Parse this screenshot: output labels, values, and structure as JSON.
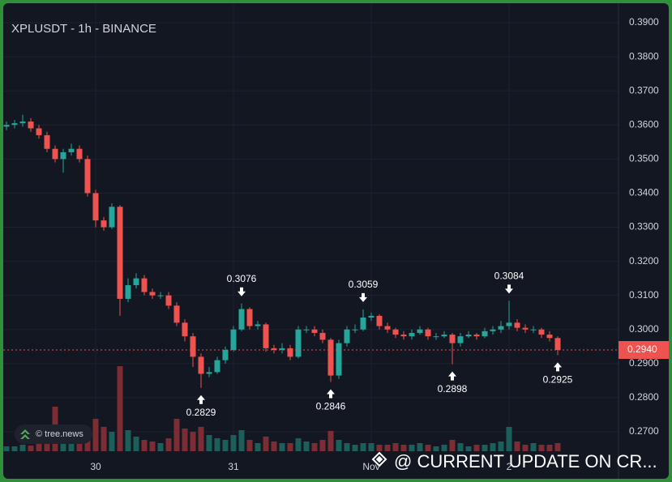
{
  "chart_data": {
    "type": "candlestick",
    "title": "XPLUSDT - 1h - BINANCE",
    "logo": "© tree.news",
    "watermark": "@ CURRENT UPDATE ON CR...",
    "categories": [
      null,
      null,
      null,
      null,
      null,
      null,
      null,
      null,
      null,
      null,
      null,
      "30",
      null,
      null,
      null,
      null,
      null,
      null,
      null,
      null,
      null,
      null,
      null,
      null,
      null,
      null,
      null,
      null,
      "31",
      null,
      null,
      null,
      null,
      null,
      null,
      null,
      null,
      null,
      null,
      null,
      null,
      null,
      null,
      null,
      null,
      "Nov",
      null,
      null,
      null,
      null,
      null,
      null,
      null,
      null,
      null,
      null,
      null,
      null,
      null,
      null,
      null,
      null,
      "2",
      null,
      null,
      null,
      null,
      null,
      null
    ],
    "open": [
      0.3595,
      0.36,
      0.3605,
      0.361,
      0.359,
      0.357,
      0.353,
      0.35,
      0.352,
      0.353,
      0.35,
      0.34,
      0.332,
      0.33,
      0.336,
      0.309,
      0.313,
      0.315,
      0.311,
      0.31,
      0.31,
      0.307,
      0.302,
      0.298,
      0.292,
      0.287,
      0.2875,
      0.291,
      0.294,
      0.3,
      0.306,
      0.301,
      0.3015,
      0.2945,
      0.294,
      0.2945,
      0.292,
      0.3,
      0.3,
      0.299,
      0.297,
      0.2865,
      0.296,
      0.3,
      0.3,
      0.3035,
      0.304,
      0.301,
      0.3,
      0.2985,
      0.298,
      0.299,
      0.3,
      0.298,
      0.298,
      0.2985,
      0.296,
      0.298,
      0.2985,
      0.298,
      0.2995,
      0.3,
      0.301,
      0.302,
      0.3005,
      0.3,
      0.3,
      0.2985,
      0.2975
    ],
    "high": [
      0.361,
      0.3615,
      0.363,
      0.362,
      0.36,
      0.358,
      0.354,
      0.353,
      0.3545,
      0.354,
      0.351,
      0.341,
      0.333,
      0.337,
      0.3365,
      0.315,
      0.3165,
      0.316,
      0.312,
      0.311,
      0.311,
      0.308,
      0.303,
      0.299,
      0.293,
      0.289,
      0.292,
      0.295,
      0.301,
      0.3076,
      0.3065,
      0.3025,
      0.302,
      0.2955,
      0.296,
      0.2955,
      0.301,
      0.301,
      0.301,
      0.3,
      0.2975,
      0.297,
      0.301,
      0.3015,
      0.3059,
      0.305,
      0.3045,
      0.302,
      0.3005,
      0.2995,
      0.3,
      0.301,
      0.3005,
      0.299,
      0.2995,
      0.299,
      0.299,
      0.2995,
      0.299,
      0.3005,
      0.301,
      0.3025,
      0.3084,
      0.303,
      0.3015,
      0.301,
      0.3005,
      0.2995,
      0.298
    ],
    "low": [
      0.3585,
      0.359,
      0.3595,
      0.358,
      0.356,
      0.352,
      0.349,
      0.346,
      0.351,
      0.349,
      0.339,
      0.33,
      0.329,
      0.3295,
      0.304,
      0.308,
      0.312,
      0.31,
      0.309,
      0.309,
      0.306,
      0.301,
      0.2965,
      0.289,
      0.2829,
      0.286,
      0.287,
      0.29,
      0.2935,
      0.2995,
      0.3,
      0.3,
      0.2935,
      0.293,
      0.293,
      0.291,
      0.2915,
      0.299,
      0.298,
      0.296,
      0.2846,
      0.2855,
      0.295,
      0.299,
      0.2995,
      0.3025,
      0.3,
      0.299,
      0.2975,
      0.297,
      0.297,
      0.2985,
      0.297,
      0.297,
      0.2975,
      0.2898,
      0.295,
      0.2975,
      0.297,
      0.2975,
      0.2985,
      0.299,
      0.3,
      0.2995,
      0.299,
      0.299,
      0.2975,
      0.2965,
      0.2925
    ],
    "close": [
      0.36,
      0.3605,
      0.361,
      0.359,
      0.357,
      0.353,
      0.35,
      0.352,
      0.353,
      0.35,
      0.34,
      0.332,
      0.33,
      0.336,
      0.309,
      0.313,
      0.315,
      0.311,
      0.31,
      0.31,
      0.307,
      0.302,
      0.298,
      0.292,
      0.287,
      0.2875,
      0.291,
      0.294,
      0.3,
      0.306,
      0.301,
      0.3015,
      0.2945,
      0.294,
      0.2945,
      0.292,
      0.3,
      0.3,
      0.299,
      0.297,
      0.2865,
      0.296,
      0.3,
      0.3,
      0.3035,
      0.304,
      0.301,
      0.3,
      0.2985,
      0.298,
      0.299,
      0.3,
      0.298,
      0.298,
      0.2985,
      0.296,
      0.298,
      0.2985,
      0.298,
      0.2995,
      0.3,
      0.301,
      0.302,
      0.3005,
      0.3,
      0.3,
      0.2985,
      0.2975,
      0.294
    ],
    "volume": [
      6,
      6,
      8,
      7,
      10,
      14,
      55,
      30,
      18,
      12,
      20,
      40,
      30,
      24,
      105,
      26,
      18,
      14,
      12,
      10,
      16,
      40,
      28,
      24,
      30,
      20,
      16,
      14,
      20,
      26,
      14,
      10,
      18,
      12,
      10,
      10,
      16,
      12,
      10,
      14,
      25,
      14,
      10,
      8,
      10,
      10,
      8,
      8,
      10,
      8,
      8,
      10,
      8,
      6,
      8,
      14,
      10,
      6,
      8,
      8,
      10,
      12,
      30,
      12,
      8,
      10,
      8,
      8,
      10
    ],
    "up_color": "#26a69a",
    "down_color": "#ef5350",
    "volume_up_color": "#1b5e5a",
    "volume_down_color": "#7b2d33",
    "high_labels": [
      0.3076,
      0.3059,
      0.3084
    ],
    "low_labels": [
      0.2829,
      0.2846,
      0.2898,
      0.2925
    ],
    "last_price": {
      "value": 0.294,
      "label": "0.2940"
    },
    "ylim": [
      0.27,
      0.39
    ],
    "yticks": [
      {
        "value": 0.27,
        "label": "0.2700"
      },
      {
        "value": 0.28,
        "label": "0.2800"
      },
      {
        "value": 0.29,
        "label": "0.2900"
      },
      {
        "value": 0.3,
        "label": "0.3000"
      },
      {
        "value": 0.31,
        "label": "0.3100"
      },
      {
        "value": 0.32,
        "label": "0.3200"
      },
      {
        "value": 0.33,
        "label": "0.3300"
      },
      {
        "value": 0.34,
        "label": "0.3400"
      },
      {
        "value": 0.35,
        "label": "0.3500"
      },
      {
        "value": 0.36,
        "label": "0.3600"
      },
      {
        "value": 0.37,
        "label": "0.3700"
      },
      {
        "value": 0.38,
        "label": "0.3800"
      },
      {
        "value": 0.39,
        "label": "0.3900"
      }
    ],
    "grid": true
  }
}
